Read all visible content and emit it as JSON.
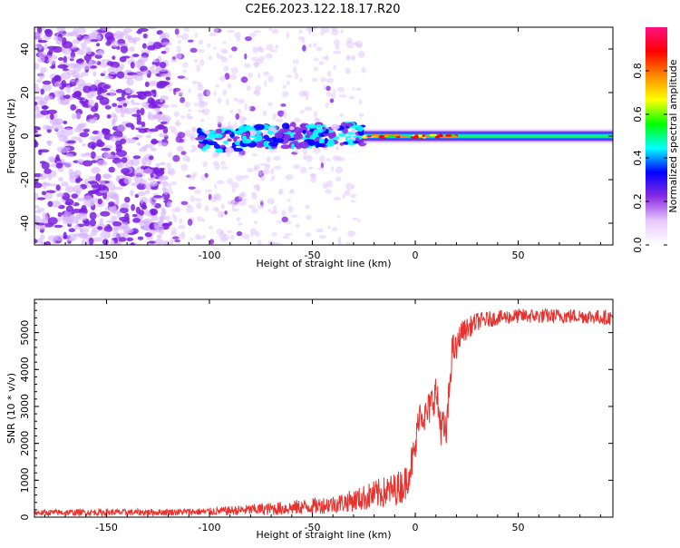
{
  "figure": {
    "title": "C2E6.2023.122.18.17.R20"
  },
  "chart_data": [
    {
      "type": "heatmap",
      "title": "C2E6.2023.122.18.17.R20",
      "xlabel": "Height of straight line (km)",
      "ylabel": "Frequency (Hz)",
      "xlim": [
        -185,
        96
      ],
      "ylim": [
        -50,
        50
      ],
      "xticks": [
        -150,
        -100,
        -50,
        0,
        50
      ],
      "yticks": [
        -40,
        -20,
        0,
        20,
        40
      ],
      "colorbar": {
        "label": "Normalized spectral amplitude",
        "range": [
          0.0,
          1.0
        ],
        "ticks": [
          0.0,
          0.2,
          0.4,
          0.6,
          0.8
        ],
        "colormap": [
          "#ffffff",
          "#e8c8ff",
          "#8a2be2",
          "#0000ff",
          "#00ffff",
          "#00ff00",
          "#ffff00",
          "#ff8800",
          "#ff0000",
          "#ff1080"
        ]
      },
      "description_regions": [
        {
          "x_range": [
            -185,
            -120
          ],
          "density": "dense",
          "y_spread": [
            -50,
            50
          ]
        },
        {
          "x_range": [
            -120,
            -25
          ],
          "density": "sparse",
          "y_spread": [
            -50,
            50
          ]
        },
        {
          "x_range": [
            -105,
            -25
          ],
          "density": "band",
          "y_spread": [
            -10,
            8
          ]
        },
        {
          "x_range": [
            -25,
            96
          ],
          "density": "narrow-band",
          "y_spread": [
            -3,
            3
          ]
        }
      ]
    },
    {
      "type": "line",
      "xlabel": "Height of straight line (km)",
      "ylabel": "SNR (10 * v/v)",
      "xlim": [
        -185,
        96
      ],
      "ylim": [
        0,
        5900
      ],
      "xticks": [
        -150,
        -100,
        -50,
        0,
        50
      ],
      "yticks": [
        0,
        1000,
        2000,
        3000,
        4000,
        5000
      ],
      "series": [
        {
          "color": "#e8322e",
          "x": [
            -185,
            -160,
            -130,
            -100,
            -80,
            -60,
            -50,
            -40,
            -30,
            -20,
            -10,
            -5,
            0,
            2,
            5,
            8,
            10,
            12,
            15,
            18,
            20,
            22,
            25,
            30,
            40,
            50,
            60,
            70,
            80,
            96
          ],
          "y": [
            120,
            130,
            130,
            150,
            200,
            250,
            300,
            350,
            450,
            600,
            750,
            900,
            1800,
            2900,
            2700,
            3100,
            3400,
            2600,
            2200,
            4600,
            4500,
            5000,
            5100,
            5300,
            5400,
            5450,
            5450,
            5450,
            5450,
            5400
          ],
          "noise_amplitude": [
            80,
            90,
            90,
            100,
            150,
            200,
            220,
            250,
            300,
            400,
            450,
            500,
            500,
            400,
            500,
            500,
            500,
            600,
            500,
            400,
            400,
            300,
            300,
            250,
            200,
            200,
            200,
            200,
            200,
            200
          ]
        }
      ]
    }
  ]
}
